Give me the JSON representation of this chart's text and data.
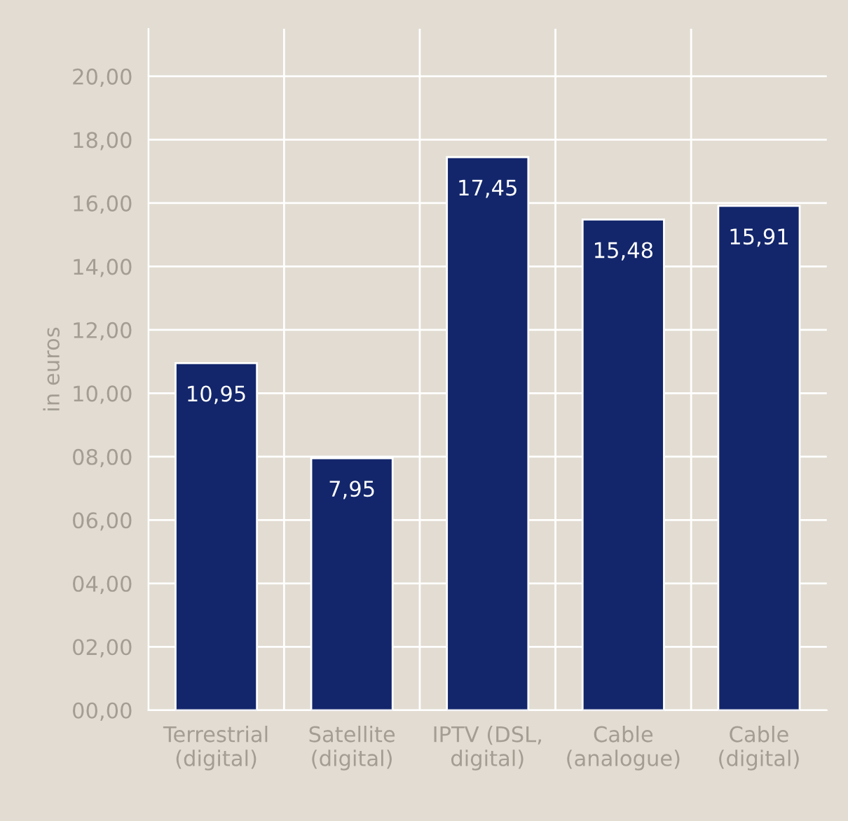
{
  "chart_data": {
    "type": "bar",
    "ylabel": "in euros",
    "categories": [
      "Terrestrial\n(digital)",
      "Satellite\n(digital)",
      "IPTV (DSL,\ndigital)",
      "Cable\n(analogue)",
      "Cable\n(digital)"
    ],
    "values": [
      10.95,
      7.95,
      17.45,
      15.48,
      15.91
    ],
    "value_labels": [
      "10,95",
      "7,95",
      "17,45",
      "15,48",
      "15,91"
    ],
    "color": "#13266b",
    "ylim": [
      0,
      21.5
    ],
    "yticks": [
      {
        "value": 0,
        "label": "00,00"
      },
      {
        "value": 2,
        "label": "02,00"
      },
      {
        "value": 4,
        "label": "04,00"
      },
      {
        "value": 6,
        "label": "06,00"
      },
      {
        "value": 8,
        "label": "08,00"
      },
      {
        "value": 10,
        "label": "10,00"
      },
      {
        "value": 12,
        "label": "12,00"
      },
      {
        "value": 14,
        "label": "14,00"
      },
      {
        "value": 16,
        "label": "16,00"
      },
      {
        "value": 18,
        "label": "18,00"
      },
      {
        "value": 20,
        "label": "20,00"
      }
    ],
    "grid": true
  }
}
